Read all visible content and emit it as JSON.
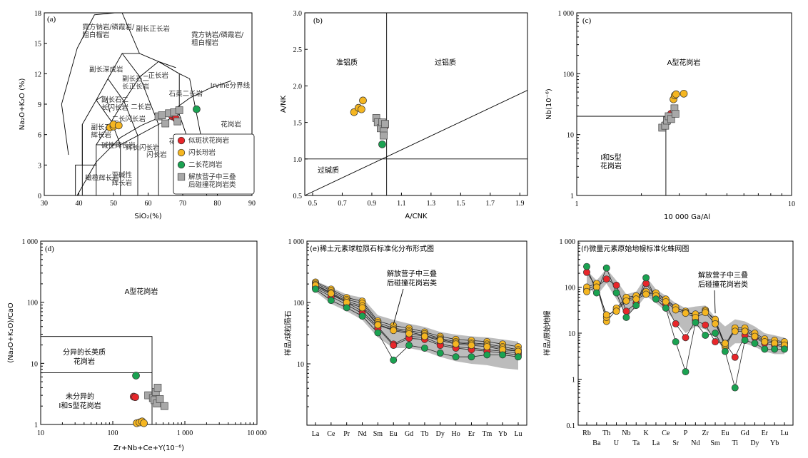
{
  "colors": {
    "red": "#e8262a",
    "yellow": "#f5b621",
    "green": "#1aa251",
    "gray": "#a8a8a8",
    "band": "#b5b5b5"
  },
  "legend": [
    {
      "name": "似斑状花岗岩",
      "marker": "circle",
      "color": "#e8262a"
    },
    {
      "name": "闪长玢岩",
      "marker": "circle",
      "color": "#f5b621"
    },
    {
      "name": "二长花岗岩",
      "marker": "circle",
      "color": "#1aa251"
    },
    {
      "name": "解放营子中三叠\n后碰撞花岗岩类",
      "marker": "square",
      "color": "#a8a8a8"
    }
  ],
  "chart_data": [
    {
      "panel": "(a)",
      "type": "scatter",
      "xlabel": "SiO₂(%)",
      "ylabel": "Na₂O+K₂O (%)",
      "xlim": [
        30,
        90
      ],
      "ylim": [
        0,
        18
      ],
      "xticks": [
        "30",
        "40",
        "50",
        "60",
        "70",
        "80",
        "90"
      ],
      "yticks": [
        "0",
        "3",
        "6",
        "9",
        "12",
        "15",
        "18"
      ],
      "field_labels": [
        "霓方钠岩/磷霞岩/粗白榴岩",
        "副长正长岩",
        "霓方钠岩/磷霞岩/粗白榴岩",
        "副长深成岩",
        "副长石二长正长岩",
        "正长岩",
        "副长石二长闪长岩",
        "二长岩",
        "石英二长岩",
        "Irvine分界线",
        "副长石辉长岩",
        "二长闪长岩",
        "二长辉长岩",
        "花岗岩",
        "花岗闪长岩",
        "闪长岩",
        "辉长闪长岩",
        "碱性辉长岩",
        "亚碱性辉长岩",
        "橄榄辉长岩"
      ],
      "series": [
        {
          "name": "似斑状花岗岩",
          "points": [
            [
              67,
              7.8
            ],
            [
              67.5,
              7.9
            ],
            [
              68,
              7.6
            ]
          ]
        },
        {
          "name": "闪长玢岩",
          "points": [
            [
              49,
              6.7
            ],
            [
              50,
              6.8
            ],
            [
              50,
              7.0
            ],
            [
              51.5,
              6.9
            ]
          ]
        },
        {
          "name": "二长花岗岩",
          "points": [
            [
              74,
              8.5
            ]
          ]
        },
        {
          "name": "解放营子中三叠后碰撞花岗岩类",
          "points": [
            [
              63,
              7.8
            ],
            [
              64,
              7.9
            ],
            [
              65,
              7.1
            ],
            [
              66,
              8.1
            ],
            [
              67.5,
              8.2
            ],
            [
              68.5,
              7.3
            ],
            [
              69,
              8.4
            ]
          ]
        }
      ]
    },
    {
      "panel": "(b)",
      "type": "scatter",
      "xlabel": "A/CNK",
      "ylabel": "A/NK",
      "xlim": [
        0.5,
        2.0
      ],
      "ylim": [
        0.5,
        3.0
      ],
      "xticks": [
        "0.5",
        "0.7",
        "0.9",
        "1.1",
        "1.3",
        "1.5",
        "1.7",
        "1.9"
      ],
      "yticks": [
        "0.5",
        "1.0",
        "1.5",
        "2.0",
        "2.5",
        "3.0"
      ],
      "field_labels": [
        "准铝质",
        "过铝质",
        "过碱质"
      ],
      "series": [
        {
          "name": "似斑状花岗岩",
          "points": [
            [
              0.99,
              1.45
            ]
          ]
        },
        {
          "name": "闪长玢岩",
          "points": [
            [
              0.78,
              1.64
            ],
            [
              0.81,
              1.7
            ],
            [
              0.83,
              1.68
            ],
            [
              0.84,
              1.8
            ]
          ]
        },
        {
          "name": "二长花岗岩",
          "points": [
            [
              0.97,
              1.2
            ]
          ]
        },
        {
          "name": "解放营子中三叠后碰撞花岗岩类",
          "points": [
            [
              0.93,
              1.56
            ],
            [
              0.94,
              1.5
            ],
            [
              0.96,
              1.42
            ],
            [
              0.97,
              1.5
            ],
            [
              0.98,
              1.38
            ],
            [
              0.99,
              1.48
            ],
            [
              0.98,
              1.32
            ]
          ]
        }
      ]
    },
    {
      "panel": "(c)",
      "type": "scatter",
      "scale": "log",
      "xlabel": "10 000 Ga/Al",
      "ylabel": "Nb(10⁻⁶)",
      "xlim": [
        1,
        10
      ],
      "ylim": [
        1,
        1000
      ],
      "xticks": [
        "1",
        "10"
      ],
      "yticks": [
        "1",
        "10",
        "100",
        "1 000"
      ],
      "field_labels": [
        "A型花岗岩",
        "I和S型花岗岩"
      ],
      "series": [
        {
          "name": "似斑状花岗岩",
          "points": [
            [
              2.75,
              22
            ]
          ]
        },
        {
          "name": "闪长玢岩",
          "points": [
            [
              2.82,
              38
            ],
            [
              2.86,
              44
            ],
            [
              2.9,
              46
            ],
            [
              3.15,
              47
            ]
          ]
        },
        {
          "name": "二长花岗岩",
          "points": [
            [
              2.62,
              16
            ]
          ]
        },
        {
          "name": "解放营子中三叠后碰撞花岗岩类",
          "points": [
            [
              2.5,
              13
            ],
            [
              2.58,
              14
            ],
            [
              2.63,
              17
            ],
            [
              2.68,
              20
            ],
            [
              2.75,
              18
            ],
            [
              2.85,
              27
            ],
            [
              2.88,
              22
            ]
          ]
        }
      ]
    },
    {
      "panel": "(d)",
      "type": "scatter",
      "scale": "log",
      "xlabel": "Zr+Nb+Ce+Y(10⁻⁶)",
      "ylabel": "(Na₂O+K₂O)/CaO",
      "xlim": [
        10,
        10000
      ],
      "ylim": [
        1,
        1000
      ],
      "xticks": [
        "10",
        "100",
        "1 000",
        "10 000"
      ],
      "yticks": [
        "1",
        "10",
        "100",
        "1 000"
      ],
      "field_labels": [
        "A型花岗岩",
        "分异的长英质花岗岩",
        "未分异的I和S型花岗岩"
      ],
      "series": [
        {
          "name": "似斑状花岗岩",
          "points": [
            [
              195,
              2.85
            ],
            [
              205,
              2.8
            ]
          ]
        },
        {
          "name": "闪长玢岩",
          "points": [
            [
              215,
              1.05
            ],
            [
              235,
              1.08
            ],
            [
              255,
              1.12
            ],
            [
              270,
              1.05
            ]
          ]
        },
        {
          "name": "二长花岗岩",
          "points": [
            [
              210,
              6.3
            ]
          ]
        },
        {
          "name": "解放营子中三叠后碰撞花岗岩类",
          "points": [
            [
              310,
              3.0
            ],
            [
              360,
              2.7
            ],
            [
              380,
              2.5
            ],
            [
              395,
              3.4
            ],
            [
              410,
              2.2
            ],
            [
              420,
              4.0
            ],
            [
              450,
              2.6
            ],
            [
              520,
              2.0
            ]
          ]
        }
      ]
    },
    {
      "panel": "(e)",
      "type": "line",
      "scale": "log",
      "title": "(e)稀土元素球粒陨石标准化分布形式图",
      "ylabel": "样品/球粒陨石",
      "categories": [
        "La",
        "Ce",
        "Pr",
        "Nd",
        "Sm",
        "Eu",
        "Gd",
        "Tb",
        "Dy",
        "Ho",
        "Er",
        "Tm",
        "Yb",
        "Lu"
      ],
      "yticks": [
        "10",
        "100",
        "1 000"
      ],
      "ylim": [
        1,
        1000
      ],
      "annotation": "解放营子中三叠\n后碰撞花岗岩类",
      "series": [
        {
          "name": "似斑状花岗岩",
          "values": [
            180,
            135,
            100,
            72,
            40,
            21,
            28,
            27,
            21,
            19,
            18,
            17,
            16,
            15
          ]
        },
        {
          "name": "似斑状花岗岩",
          "values": [
            170,
            125,
            92,
            66,
            38,
            20,
            26,
            25,
            20,
            18,
            17,
            16,
            15,
            14
          ]
        },
        {
          "name": "闪长玢岩",
          "values": [
            215,
            165,
            120,
            105,
            50,
            42,
            38,
            33,
            28,
            25,
            24,
            23,
            21,
            19
          ]
        },
        {
          "name": "闪长玢岩",
          "values": [
            205,
            155,
            112,
            97,
            47,
            38,
            35,
            31,
            26,
            23,
            22,
            21,
            19,
            17
          ]
        },
        {
          "name": "闪长玢岩",
          "values": [
            195,
            145,
            105,
            88,
            44,
            36,
            33,
            29,
            25,
            22,
            21,
            20,
            18,
            16
          ]
        },
        {
          "name": "闪长玢岩",
          "values": [
            190,
            140,
            100,
            82,
            43,
            35,
            31,
            28,
            24,
            21,
            20,
            19,
            17,
            16
          ]
        },
        {
          "name": "二长花岗岩",
          "values": [
            165,
            108,
            82,
            60,
            32,
            11.5,
            20,
            18,
            15,
            13,
            13,
            14,
            14,
            13
          ]
        }
      ]
    },
    {
      "panel": "(f)",
      "type": "line",
      "scale": "log",
      "title": "(f)微量元素原始地幔标准化蛛网图",
      "ylabel": "样品/原始地幔",
      "categories": [
        "Rb",
        "Ba",
        "Th",
        "U",
        "Nb",
        "Ta",
        "K",
        "La",
        "Ce",
        "Sr",
        "P",
        "Nd",
        "Zr",
        "Sm",
        "Eu",
        "Ti",
        "Gd",
        "Dy",
        "Er",
        "Yb",
        "Lu"
      ],
      "yticks": [
        "0.1",
        "1",
        "10",
        "100",
        "1 000"
      ],
      "ylim": [
        0.1,
        1000
      ],
      "annotation": "解放营子中三叠\n后碰撞花岗岩类",
      "series": [
        {
          "name": "似斑状花岗岩",
          "values": [
            210,
            100,
            150,
            110,
            30,
            45,
            120,
            60,
            42,
            16,
            8,
            19,
            15,
            6.5,
            6,
            3,
            9,
            8,
            6,
            5.5,
            5
          ]
        },
        {
          "name": "闪长玢岩",
          "values": [
            90,
            110,
            18,
            32,
            55,
            60,
            75,
            70,
            52,
            35,
            30,
            24,
            32,
            18,
            5,
            12,
            12,
            9,
            7,
            6.5,
            6
          ]
        },
        {
          "name": "闪长玢岩",
          "values": [
            100,
            120,
            22,
            35,
            60,
            65,
            80,
            75,
            55,
            37,
            28,
            26,
            30,
            20,
            5.5,
            13,
            13,
            10,
            7.5,
            7,
            6.5
          ]
        },
        {
          "name": "闪长玢岩",
          "values": [
            80,
            100,
            25,
            30,
            50,
            55,
            70,
            65,
            48,
            32,
            27,
            22,
            28,
            16,
            6,
            11,
            11,
            8.5,
            6.5,
            6,
            5.5
          ]
        },
        {
          "name": "二长花岗岩",
          "values": [
            280,
            75,
            260,
            75,
            22,
            40,
            160,
            55,
            35,
            6.5,
            1.45,
            17,
            9,
            10,
            4,
            0.65,
            7,
            6,
            4.5,
            4.5,
            4.5
          ]
        }
      ]
    }
  ]
}
